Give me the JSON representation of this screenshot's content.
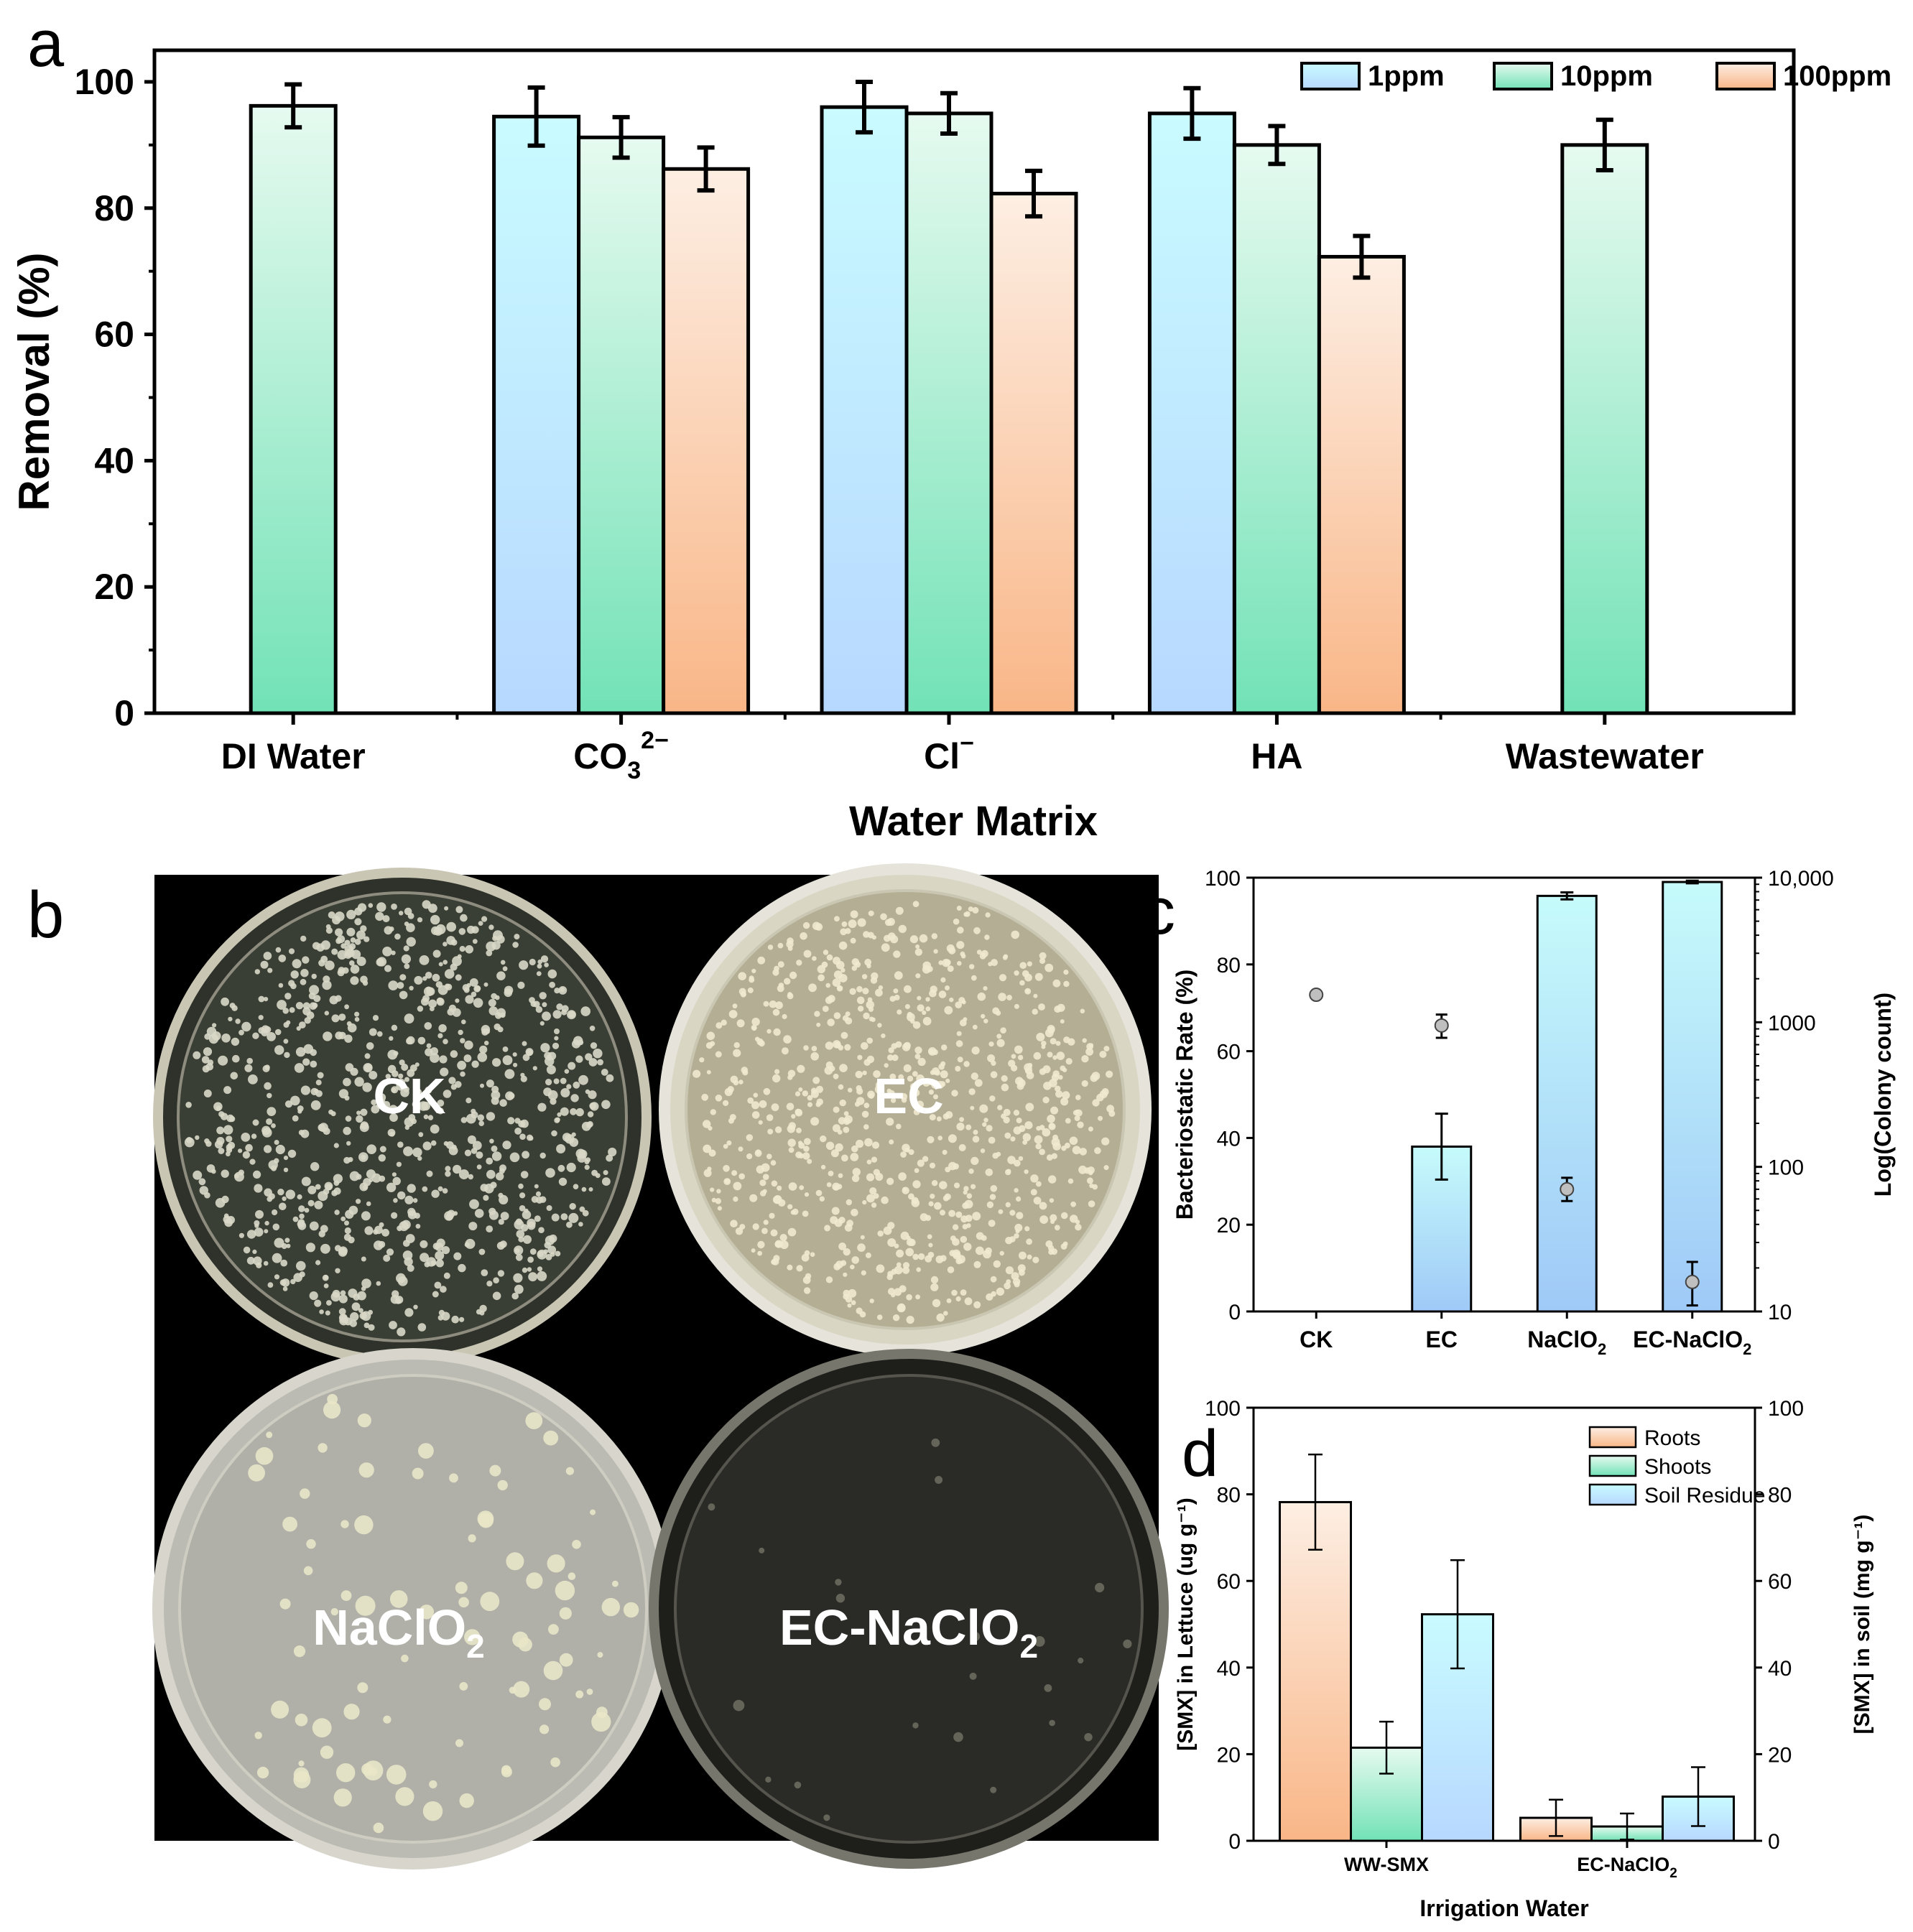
{
  "panel_labels": {
    "a": "a",
    "b": "b",
    "c": "c",
    "d": "d"
  },
  "chart_data": [
    {
      "panel": "a",
      "type": "bar",
      "xlabel": "Water Matrix",
      "ylabel": "Removal (%)",
      "ylim": [
        0,
        105
      ],
      "yticks": [
        0,
        20,
        40,
        60,
        80,
        100
      ],
      "categories": [
        {
          "main": "DI Water",
          "sub": "",
          "sup": ""
        },
        {
          "main": "CO",
          "sub": "3",
          "sup": "2−"
        },
        {
          "main": "Cl",
          "sub": "",
          "sup": "−"
        },
        {
          "main": "HA",
          "sub": "",
          "sup": ""
        },
        {
          "main": "Wastewater",
          "sub": "",
          "sup": ""
        }
      ],
      "series": [
        {
          "name": "1ppm",
          "colors": [
            "#c9fbff",
            "#b7d8ff"
          ],
          "values": [
            null,
            94.5,
            96.0,
            95.0,
            null
          ],
          "errors": [
            null,
            4.6,
            4.0,
            4.0,
            null
          ]
        },
        {
          "name": "10ppm",
          "colors": [
            "#e6faf0",
            "#72e2b6"
          ],
          "values": [
            96.2,
            91.2,
            95.0,
            90.0,
            90.0
          ],
          "errors": [
            3.4,
            3.2,
            3.2,
            3.0,
            4.0
          ]
        },
        {
          "name": "100ppm",
          "colors": [
            "#fdeee3",
            "#f9b687"
          ],
          "values": [
            null,
            86.2,
            82.3,
            72.3,
            null
          ],
          "errors": [
            null,
            3.4,
            3.6,
            3.3,
            null
          ]
        }
      ],
      "legend": "top-right",
      "grid": false
    },
    {
      "panel": "c",
      "type": "bar",
      "categories": [
        {
          "main": "CK",
          "sub": ""
        },
        {
          "main": "EC",
          "sub": ""
        },
        {
          "main": "NaClO",
          "sub": "2"
        },
        {
          "main": "EC-NaClO",
          "sub": "2"
        }
      ],
      "ylabel": "Bacteriostatic Rate (%)",
      "y2label": "Log(Colony count)",
      "ylim": [
        0,
        100
      ],
      "yticks": [
        0,
        20,
        40,
        60,
        80,
        100
      ],
      "y2scale": "log",
      "y2lim": [
        10,
        10000
      ],
      "y2ticks": [
        "10",
        "100",
        "1000",
        "10,000"
      ],
      "bars": {
        "colors": [
          "#c6fbfb",
          "#9fc9f7"
        ],
        "values": [
          null,
          38,
          95.8,
          99.0
        ],
        "errors": [
          null,
          7.6,
          0.8,
          0.3
        ]
      },
      "points": {
        "color": "#bfbfbf",
        "values": [
          1550,
          950,
          70,
          16
        ],
        "errors_low": [
          0,
          170,
          12,
          5
        ],
        "errors_high": [
          0,
          180,
          14,
          6
        ]
      },
      "grid": false
    },
    {
      "panel": "d",
      "type": "bar",
      "xlabel": "Irrigation Water",
      "ylabel": "[SMX] in Lettuce (ug g⁻¹)",
      "y2label": "[SMX] in soil (mg g⁻¹)",
      "ylim": [
        0,
        100
      ],
      "yticks": [
        0,
        20,
        40,
        60,
        80,
        100
      ],
      "y2lim": [
        0,
        100
      ],
      "categories": [
        {
          "main": "WW-SMX",
          "sub": ""
        },
        {
          "main": "EC-NaClO",
          "sub": "2"
        }
      ],
      "series": [
        {
          "name": "Roots",
          "colors": [
            "#fdeee3",
            "#f9b687"
          ],
          "values": [
            78.2,
            5.3
          ],
          "errors": [
            11.0,
            4.2
          ]
        },
        {
          "name": "Shoots",
          "colors": [
            "#e6faf0",
            "#72e2b6"
          ],
          "values": [
            21.5,
            3.3
          ],
          "errors": [
            6.0,
            3.0
          ]
        },
        {
          "name": "Soil Residue",
          "colors": [
            "#c9fbff",
            "#b7d8ff"
          ],
          "values": [
            52.3,
            10.2
          ],
          "errors": [
            12.5,
            6.8
          ]
        }
      ],
      "legend": "top-right",
      "grid": false
    }
  ],
  "photo_panel": {
    "plates": [
      {
        "label": "CK",
        "sub": ""
      },
      {
        "label": "EC",
        "sub": ""
      },
      {
        "label": "NaClO",
        "sub": "2"
      },
      {
        "label": "EC-NaClO",
        "sub": "2"
      }
    ]
  }
}
